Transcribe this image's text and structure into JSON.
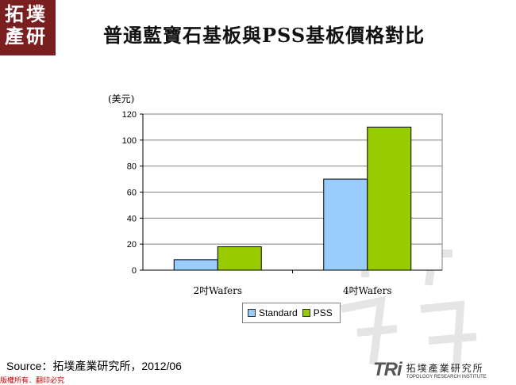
{
  "logo": {
    "chars": [
      "拓",
      "墣",
      "產",
      "研"
    ]
  },
  "title": "普通藍寶石基板與PSS基板價格對比",
  "y_unit": "(美元)",
  "chart_data": {
    "type": "bar",
    "categories": [
      "2吋Wafers",
      "4吋Wafers"
    ],
    "series": [
      {
        "name": "Standard",
        "values": [
          8,
          70
        ],
        "color": "#99ccff"
      },
      {
        "name": "PSS",
        "values": [
          18,
          110
        ],
        "color": "#99cc00"
      }
    ],
    "ylim": [
      0,
      120
    ],
    "yticks": [
      0,
      20,
      40,
      60,
      80,
      100,
      120
    ],
    "grid": true,
    "legend": "bottom-center"
  },
  "source": "Source：拓墣產業研究所，2012/06",
  "rights": "版權所有．翻印必究",
  "brand": {
    "mark": "TRi",
    "cn": "拓墣產業研究所",
    "en": "TOPOLOGY RESEARCH INSTITUTE"
  }
}
